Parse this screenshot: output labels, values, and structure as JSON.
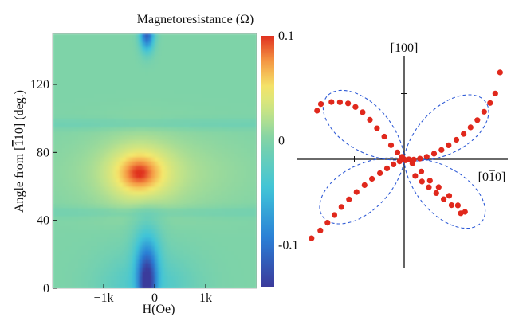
{
  "chart_data": [
    {
      "type": "heatmap",
      "title": "Magnetoresistance (Ω)",
      "xlabel": "H(Oe)",
      "ylabel_pre": "Angle from [",
      "ylabel_bar": "1",
      "ylabel_post": "10] (deg.)",
      "xlim": [
        -2000,
        2000
      ],
      "ylim": [
        0,
        150
      ],
      "x_ticks": [
        {
          "value": -1000,
          "label": "−1k"
        },
        {
          "value": 0,
          "label": "0"
        },
        {
          "value": 1000,
          "label": "1k"
        }
      ],
      "y_ticks": [
        {
          "value": 0,
          "label": "0"
        },
        {
          "value": 40,
          "label": "40"
        },
        {
          "value": 80,
          "label": "80"
        },
        {
          "value": 120,
          "label": "120"
        }
      ],
      "colorbar": {
        "range": [
          -0.14,
          0.1
        ],
        "ticks": [
          {
            "value": 0.1,
            "label": "0.1"
          },
          {
            "value": 0,
            "label": "0"
          },
          {
            "value": -0.1,
            "label": "-0.1"
          }
        ],
        "colors": [
          "#3b3a9b",
          "#2a7fd6",
          "#3fc4d8",
          "#7ed3a8",
          "#bfe28a",
          "#f4e86c",
          "#f59b45",
          "#e0301f"
        ]
      },
      "features": {
        "background": 0,
        "hot_spot": {
          "field": -300,
          "angle": 68,
          "peak": 0.09
        },
        "cold_valley_center_field": -150,
        "cold_min": -0.13
      }
    },
    {
      "type": "scatter",
      "subtype": "polar",
      "axis_label_top": "[100]",
      "axis_label_right_pre": "[0",
      "axis_label_right_bar": "1",
      "axis_label_right_post": "0]",
      "marker_color": "#e0281c",
      "fit_color": "#2f5bd6",
      "fit_lobes": [
        {
          "angle_deg": 35,
          "radius": 1.0
        },
        {
          "angle_deg": 141,
          "radius": 1.0
        }
      ],
      "x": [
        0.962,
        0.914,
        0.862,
        0.802,
        0.734,
        0.666,
        0.597,
        0.524,
        0.446,
        0.374,
        0.3,
        0.226,
        0.158,
        0.096,
        0.043,
        0.0,
        -0.022,
        -0.068,
        -0.132,
        -0.199,
        -0.273,
        -0.344,
        -0.417,
        -0.489,
        -0.563,
        -0.645,
        -0.73,
        -0.836,
        -0.874,
        -0.93,
        -0.842,
        -0.77,
        -0.7,
        -0.63,
        -0.554,
        -0.478,
        -0.398,
        -0.323,
        -0.243,
        -0.172,
        -0.107,
        -0.046,
        0.014,
        0.047,
        0.111,
        0.178,
        0.248,
        0.322,
        0.397,
        0.475,
        0.568,
        0.61,
        0.539,
        0.452,
        0.346,
        0.258,
        0.172,
        0.082,
        0.009,
        0.0
      ],
      "y": [
        0.873,
        0.661,
        0.566,
        0.478,
        0.394,
        0.321,
        0.255,
        0.196,
        0.141,
        0.094,
        0.057,
        0.026,
        0.007,
        -0.002,
        -0.003,
        0.0,
        0.026,
        0.069,
        0.142,
        0.228,
        0.311,
        0.397,
        0.473,
        0.526,
        0.562,
        0.574,
        0.575,
        0.555,
        0.489,
        -0.793,
        -0.715,
        -0.637,
        -0.56,
        -0.479,
        -0.402,
        -0.329,
        -0.259,
        -0.196,
        -0.139,
        -0.091,
        -0.051,
        -0.021,
        -0.01,
        0.0,
        -0.167,
        -0.223,
        -0.281,
        -0.339,
        -0.401,
        -0.461,
        -0.542,
        -0.528,
        -0.463,
        -0.366,
        -0.28,
        -0.214,
        -0.123,
        -0.041,
        -0.008,
        0.0
      ]
    }
  ]
}
